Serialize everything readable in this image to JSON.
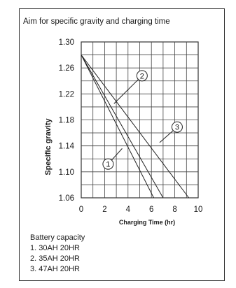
{
  "chart_data": {
    "type": "line",
    "title": "Aim for specific gravity and charging time",
    "xlabel": "Charging Time (hr)",
    "ylabel": "Specific gravity",
    "xlim": [
      0,
      10
    ],
    "ylim": [
      1.06,
      1.3
    ],
    "x_ticks": [
      0,
      2,
      4,
      6,
      8,
      10
    ],
    "y_ticks": [
      1.3,
      1.26,
      1.22,
      1.18,
      1.14,
      1.1,
      1.06
    ],
    "y_tick_labels": [
      "1.30",
      "1.26",
      "1.22",
      "1.18",
      "1.14",
      "1.10",
      "1.06"
    ],
    "grid": true,
    "series": [
      {
        "marker": "1",
        "x": [
          0,
          6.2
        ],
        "y": [
          1.28,
          1.06
        ]
      },
      {
        "marker": "2",
        "x": [
          0,
          7.0
        ],
        "y": [
          1.28,
          1.06
        ]
      },
      {
        "marker": "3",
        "x": [
          0,
          9.2
        ],
        "y": [
          1.28,
          1.06
        ]
      }
    ],
    "annotations": [
      {
        "label": "1",
        "x": 2.3,
        "y": 1.112,
        "line_to": [
          3.5,
          1.136
        ]
      },
      {
        "label": "2",
        "x": 5.2,
        "y": 1.248,
        "line_to": [
          2.8,
          1.205
        ]
      },
      {
        "label": "3",
        "x": 8.2,
        "y": 1.169,
        "line_to": [
          6.7,
          1.145
        ]
      }
    ]
  },
  "legend": {
    "heading": "Battery capacity",
    "items": [
      "1. 30AH 20HR",
      "2. 35AH 20HR",
      "3. 47AH 20HR"
    ]
  }
}
